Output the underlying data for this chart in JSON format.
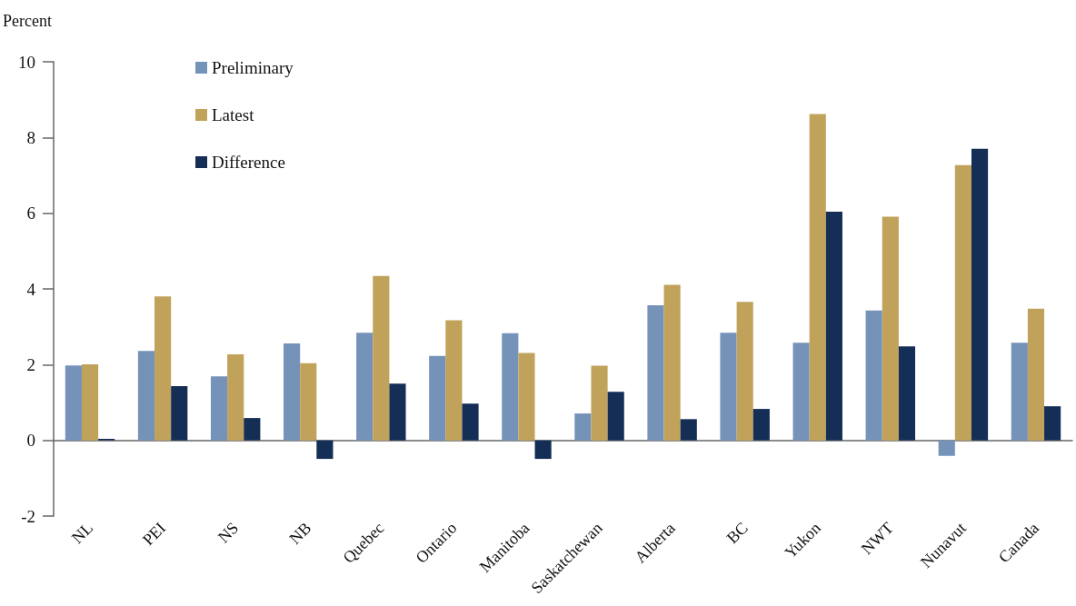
{
  "chart_data": {
    "type": "bar",
    "ylabel": "Percent",
    "categories": [
      "NL",
      "PEI",
      "NS",
      "NB",
      "Quebec",
      "Ontario",
      "Manitoba",
      "Saskatchewan",
      "Alberta",
      "BC",
      "Yukon",
      "NWT",
      "Nunavut",
      "Canada"
    ],
    "series": [
      {
        "name": "Preliminary",
        "color": "#7592b9",
        "values": [
          1.98,
          2.36,
          1.69,
          2.56,
          2.84,
          2.23,
          2.83,
          0.71,
          3.57,
          2.84,
          2.58,
          3.43,
          -0.41,
          2.58
        ]
      },
      {
        "name": "Latest",
        "color": "#c1a25b",
        "values": [
          2.01,
          3.8,
          2.27,
          2.04,
          4.34,
          3.17,
          2.31,
          1.97,
          4.11,
          3.66,
          8.62,
          5.91,
          7.27,
          3.48
        ]
      },
      {
        "name": "Difference",
        "color": "#142e56",
        "values": [
          0.04,
          1.43,
          0.59,
          -0.49,
          1.5,
          0.97,
          -0.49,
          1.28,
          0.56,
          0.83,
          6.04,
          2.48,
          7.7,
          0.9
        ]
      }
    ],
    "ylim": [
      -2,
      10
    ],
    "yticks": [
      -2,
      0,
      2,
      4,
      6,
      8,
      10
    ],
    "legend": "top left"
  }
}
